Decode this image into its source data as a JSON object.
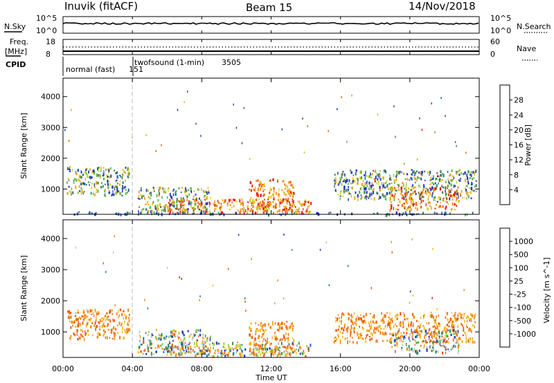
{
  "header": {
    "station": "Inuvik (fitACF)",
    "beam": "Beam 15",
    "date": "14/Nov/2018"
  },
  "top_panels": {
    "nsky_label": "N.Sky",
    "nsky_ticks": [
      "10^5",
      "10^0"
    ],
    "nsearch_label": "N.Search",
    "nsearch_ticks": [
      "10^5",
      "10^0"
    ],
    "freq_label": "Freq.",
    "freq_unit": "[MHz]",
    "freq_ticks": [
      "18",
      "8"
    ],
    "nave_label": "Nave",
    "nave_ticks": [
      "60",
      "0"
    ],
    "cpid_label": "CPID",
    "cpid_segments": [
      {
        "name": "normal (fast)",
        "id": "151"
      },
      {
        "name": "twofsound (1-min)",
        "id": "3505"
      }
    ]
  },
  "chart_data": [
    {
      "type": "heatmap",
      "title": "",
      "xlabel": "Time UT",
      "ylabel": "Slant Range [km]",
      "x_range_hours": [
        0,
        24
      ],
      "ylim": [
        180,
        4600
      ],
      "y_ticks": [
        1000,
        2000,
        3000,
        4000
      ],
      "colorbar": {
        "label": "Power [dB]",
        "ticks": [
          "4",
          "8",
          "12",
          "16",
          "20",
          "24",
          "28"
        ],
        "colors": [
          "#1f35c8",
          "#2e5aa8",
          "#3a8a4e",
          "#67b84e",
          "#d9c418",
          "#f0a01a",
          "#ef6a14",
          "#e51c0c"
        ]
      },
      "echo_regions": [
        {
          "t0": 0.2,
          "t1": 3.8,
          "r0": 800,
          "r1": 1750,
          "level": "mid"
        },
        {
          "t0": 4.3,
          "t1": 8.5,
          "r0": 300,
          "r1": 1100,
          "level": "mid"
        },
        {
          "t0": 6.0,
          "t1": 14.3,
          "r0": 250,
          "r1": 700,
          "level": "high"
        },
        {
          "t0": 10.7,
          "t1": 13.3,
          "r0": 300,
          "r1": 1350,
          "level": "high"
        },
        {
          "t0": 15.6,
          "t1": 23.8,
          "r0": 700,
          "r1": 1650,
          "level": "mid"
        },
        {
          "t0": 18.8,
          "t1": 22.8,
          "r0": 350,
          "r1": 1100,
          "level": "high"
        },
        {
          "t0": 0.2,
          "t1": 23.8,
          "r0": 200,
          "r1": 280,
          "level": "low"
        }
      ]
    },
    {
      "type": "heatmap",
      "title": "",
      "xlabel": "Time UT",
      "ylabel": "Slant Range [km]",
      "x_range_hours": [
        0,
        24
      ],
      "ylim": [
        180,
        4600
      ],
      "y_ticks": [
        1000,
        2000,
        3000,
        4000
      ],
      "colorbar": {
        "label": "Velocity [m s^-1]",
        "ticks": [
          "1000",
          "500",
          "100",
          "25",
          "-25",
          "-100",
          "-500",
          "-1000"
        ],
        "colors": [
          "#2040c0",
          "#2f7a9a",
          "#3c9a46",
          "#88d24a",
          "#bebebe",
          "#f2ba1e",
          "#f28a14",
          "#ef5a10",
          "#e01a0a"
        ]
      },
      "echo_regions": [
        {
          "t0": 0.2,
          "t1": 3.8,
          "r0": 800,
          "r1": 1750,
          "level": "neg"
        },
        {
          "t0": 4.3,
          "t1": 8.5,
          "r0": 300,
          "r1": 1100,
          "level": "mixed"
        },
        {
          "t0": 6.0,
          "t1": 14.3,
          "r0": 250,
          "r1": 700,
          "level": "mixed"
        },
        {
          "t0": 10.7,
          "t1": 13.3,
          "r0": 300,
          "r1": 1350,
          "level": "neg"
        },
        {
          "t0": 15.6,
          "t1": 23.8,
          "r0": 700,
          "r1": 1650,
          "level": "neg"
        },
        {
          "t0": 18.8,
          "t1": 22.8,
          "r0": 350,
          "r1": 1100,
          "level": "mixed"
        }
      ]
    }
  ],
  "x_ticks": [
    "00:00",
    "04:00",
    "08:00",
    "12:00",
    "16:00",
    "20:00",
    "00:00"
  ],
  "x_axis_label": "Time UT"
}
